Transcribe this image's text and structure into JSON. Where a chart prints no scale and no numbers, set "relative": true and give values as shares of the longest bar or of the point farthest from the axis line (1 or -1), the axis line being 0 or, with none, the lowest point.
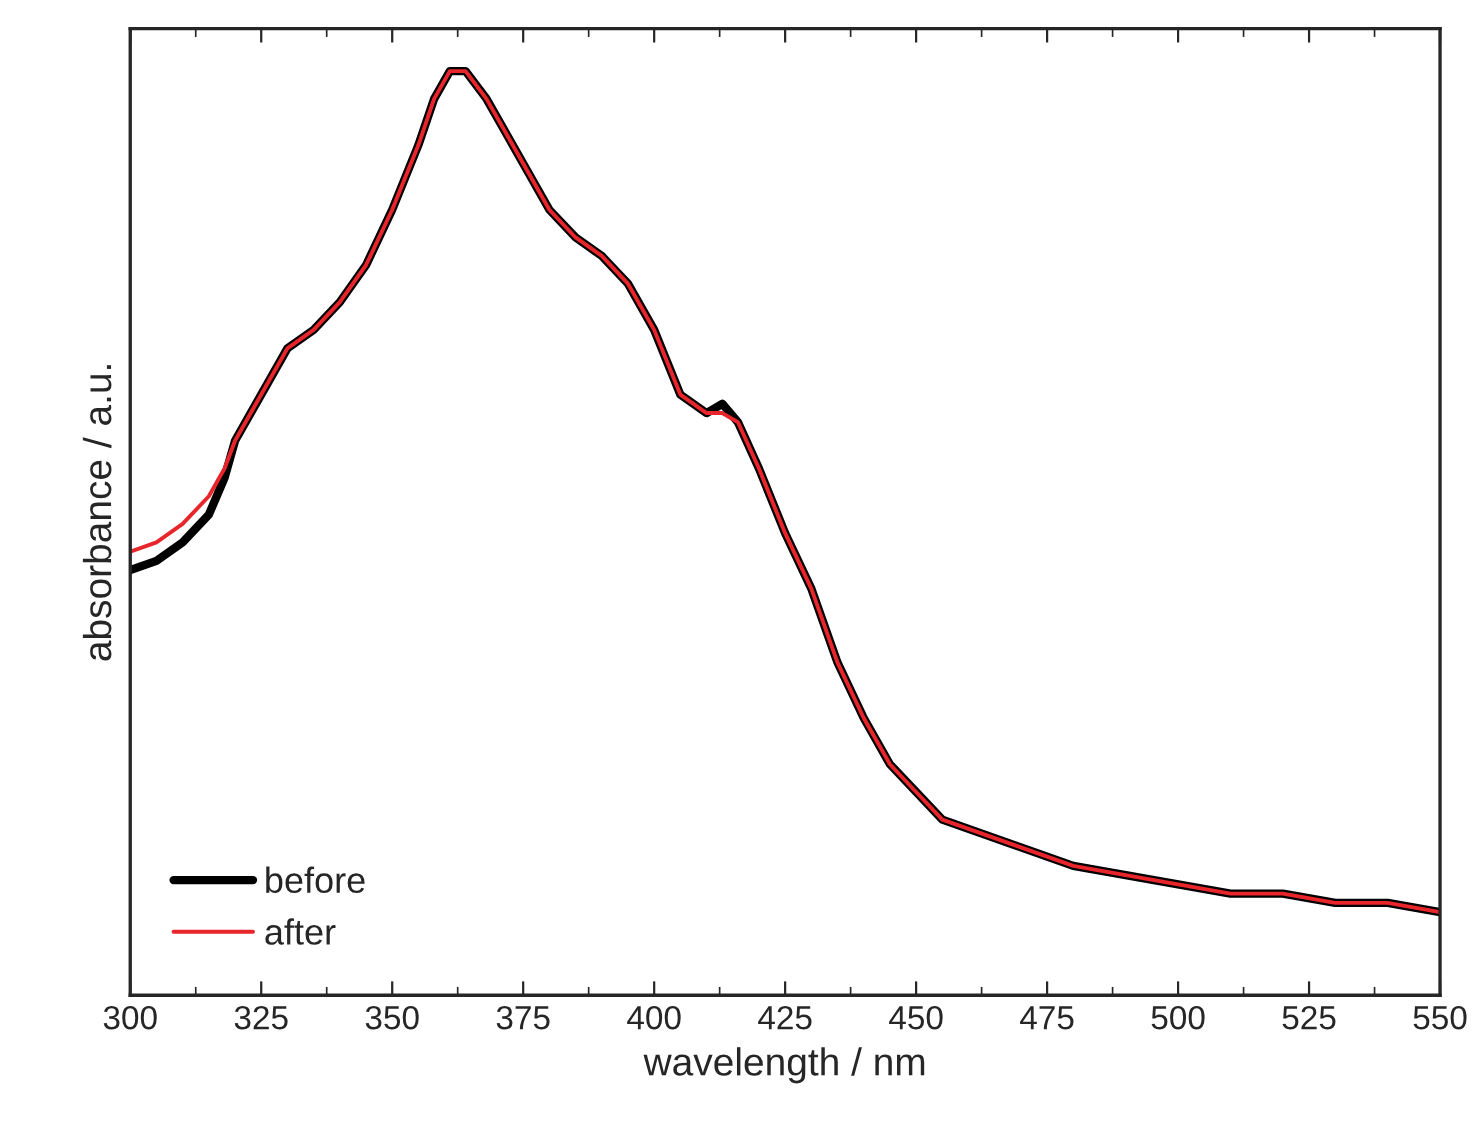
{
  "chart_data": {
    "type": "line",
    "xlabel": "wavelength / nm",
    "ylabel": "absorbance / a.u.",
    "relative": true,
    "xlim": [
      300,
      550
    ],
    "xticks": [
      300,
      325,
      350,
      375,
      400,
      425,
      450,
      475,
      500,
      525,
      550
    ],
    "x": [
      300,
      305,
      310,
      315,
      318,
      320,
      325,
      330,
      335,
      340,
      345,
      350,
      355,
      358,
      361,
      364,
      368,
      372,
      376,
      380,
      385,
      390,
      395,
      400,
      405,
      410,
      413,
      416,
      420,
      425,
      430,
      435,
      440,
      445,
      450,
      455,
      460,
      470,
      480,
      490,
      500,
      510,
      520,
      530,
      540,
      550
    ],
    "series": [
      {
        "name": "before",
        "color": "#000000",
        "values": [
          0.46,
          0.47,
          0.49,
          0.52,
          0.56,
          0.6,
          0.65,
          0.7,
          0.72,
          0.75,
          0.79,
          0.85,
          0.92,
          0.97,
          1.0,
          1.0,
          0.97,
          0.93,
          0.89,
          0.85,
          0.82,
          0.8,
          0.77,
          0.72,
          0.65,
          0.63,
          0.64,
          0.62,
          0.57,
          0.5,
          0.44,
          0.36,
          0.3,
          0.25,
          0.22,
          0.19,
          0.18,
          0.16,
          0.14,
          0.13,
          0.12,
          0.11,
          0.11,
          0.1,
          0.1,
          0.09
        ]
      },
      {
        "name": "after",
        "color": "#e8252a",
        "values": [
          0.48,
          0.49,
          0.51,
          0.54,
          0.57,
          0.6,
          0.65,
          0.7,
          0.72,
          0.75,
          0.79,
          0.85,
          0.92,
          0.97,
          1.0,
          1.0,
          0.97,
          0.93,
          0.89,
          0.85,
          0.82,
          0.8,
          0.77,
          0.72,
          0.65,
          0.63,
          0.63,
          0.62,
          0.57,
          0.5,
          0.44,
          0.36,
          0.3,
          0.25,
          0.22,
          0.19,
          0.18,
          0.16,
          0.14,
          0.13,
          0.12,
          0.11,
          0.11,
          0.1,
          0.1,
          0.09
        ]
      }
    ],
    "legend": "bottom left",
    "grid": false,
    "line_style": "solid",
    "marker": "none"
  }
}
